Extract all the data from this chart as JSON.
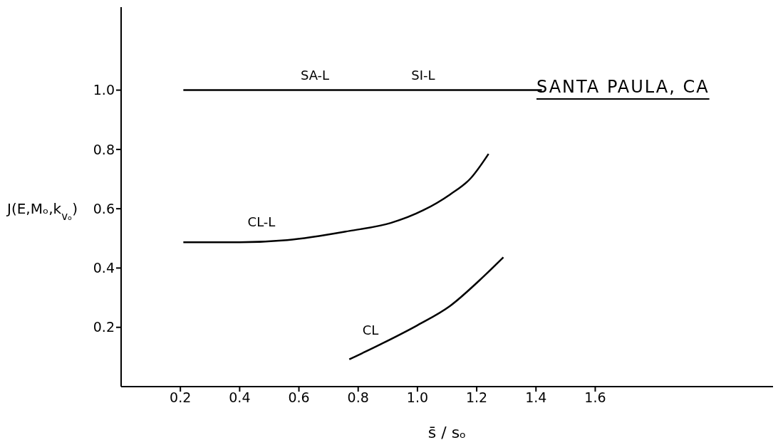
{
  "chart_data": {
    "type": "line",
    "title": "SANTA PAULA, CA",
    "xlabel": "s̄ / sₒ",
    "ylabel": "J(E,Mₒ,k$_{vₒ}$)",
    "xlim": [
      0,
      2.2
    ],
    "xticks": [
      0.2,
      0.4,
      0.6,
      0.8,
      {
        "value": 1,
        "label": "1.0"
      },
      1.2,
      1.4,
      1.6
    ],
    "ylim": [
      0,
      1.28
    ],
    "yticks": [
      0.2,
      0.4,
      0.6,
      0.8,
      {
        "value": 1,
        "label": "1.0"
      }
    ],
    "grid": false,
    "marker": "none",
    "line_style": "solid",
    "series": [
      {
        "color": "#000000",
        "x": [
          0.21,
          1.42
        ],
        "values": [
          1.0,
          1.0
        ]
      },
      {
        "color": "#000000",
        "x": [
          0.21,
          0.4,
          0.56,
          0.77,
          0.91,
          1.02,
          1.11,
          1.18,
          1.24
        ],
        "values": [
          0.487,
          0.487,
          0.494,
          0.525,
          0.552,
          0.595,
          0.648,
          0.703,
          0.785
        ]
      },
      {
        "color": "#000000",
        "x": [
          0.77,
          0.88,
          1.0,
          1.11,
          1.21,
          1.29
        ],
        "values": [
          0.092,
          0.145,
          0.207,
          0.272,
          0.359,
          0.436
        ]
      }
    ],
    "annotations": [
      "SA-L",
      "SI-L",
      "CL-L",
      "CL"
    ]
  }
}
